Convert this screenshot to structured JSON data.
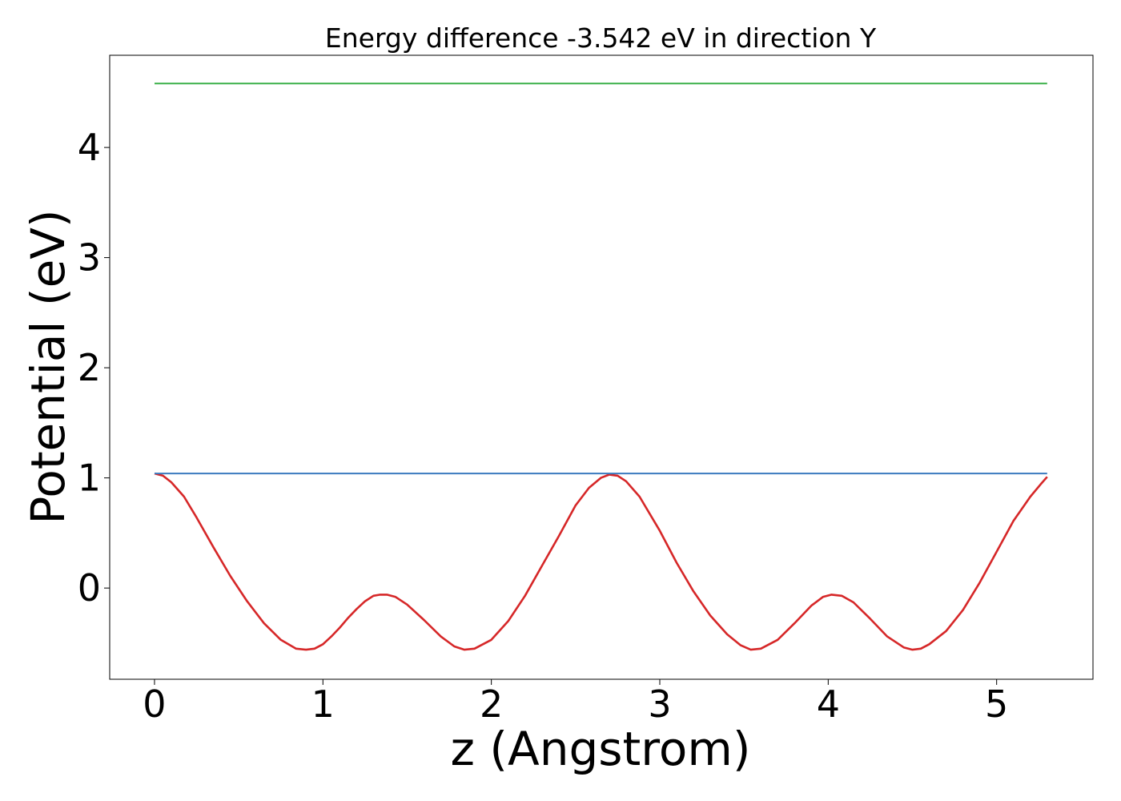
{
  "chart_data": {
    "type": "line",
    "title": "Energy difference -3.542 eV in direction Y",
    "xlabel": "z (Angstrom)",
    "ylabel": "Potential (eV)",
    "xlim": [
      -0.266,
      5.572
    ],
    "ylim": [
      -0.828,
      4.837
    ],
    "xticks": [
      0,
      1,
      2,
      3,
      4,
      5
    ],
    "yticks": [
      0,
      1,
      2,
      3,
      4
    ],
    "grid": false,
    "legend": "none",
    "series": [
      {
        "color": "#d62728",
        "x": [
          0,
          0.05,
          0.1,
          0.175,
          0.25,
          0.35,
          0.45,
          0.55,
          0.65,
          0.75,
          0.84,
          0.9,
          0.95,
          1.0,
          1.05,
          1.1,
          1.15,
          1.2,
          1.25,
          1.3,
          1.34,
          1.38,
          1.43,
          1.5,
          1.6,
          1.7,
          1.78,
          1.84,
          1.9,
          2.0,
          2.1,
          2.2,
          2.3,
          2.4,
          2.5,
          2.58,
          2.65,
          2.7,
          2.75,
          2.8,
          2.88,
          3.0,
          3.1,
          3.2,
          3.3,
          3.4,
          3.48,
          3.54,
          3.6,
          3.7,
          3.8,
          3.9,
          3.97,
          4.02,
          4.08,
          4.15,
          4.25,
          4.35,
          4.45,
          4.5,
          4.55,
          4.6,
          4.7,
          4.8,
          4.9,
          5.0,
          5.1,
          5.2,
          5.26,
          5.3
        ],
        "y": [
          1.04,
          1.02,
          0.96,
          0.83,
          0.64,
          0.37,
          0.11,
          -0.12,
          -0.32,
          -0.47,
          -0.55,
          -0.56,
          -0.55,
          -0.51,
          -0.44,
          -0.36,
          -0.27,
          -0.19,
          -0.12,
          -0.07,
          -0.06,
          -0.06,
          -0.08,
          -0.15,
          -0.29,
          -0.44,
          -0.53,
          -0.56,
          -0.55,
          -0.47,
          -0.3,
          -0.07,
          0.2,
          0.47,
          0.75,
          0.91,
          1.0,
          1.03,
          1.02,
          0.97,
          0.83,
          0.52,
          0.23,
          -0.03,
          -0.25,
          -0.42,
          -0.52,
          -0.56,
          -0.55,
          -0.47,
          -0.32,
          -0.16,
          -0.08,
          -0.06,
          -0.07,
          -0.13,
          -0.28,
          -0.44,
          -0.54,
          -0.56,
          -0.55,
          -0.51,
          -0.39,
          -0.2,
          0.05,
          0.33,
          0.61,
          0.83,
          0.94,
          1.01
        ]
      },
      {
        "color": "#3a7abf",
        "x": [
          0,
          5.3
        ],
        "y": [
          1.04,
          1.04
        ]
      },
      {
        "color": "#3cb04a",
        "x": [
          0,
          5.3
        ],
        "y": [
          4.58,
          4.58
        ]
      }
    ]
  }
}
